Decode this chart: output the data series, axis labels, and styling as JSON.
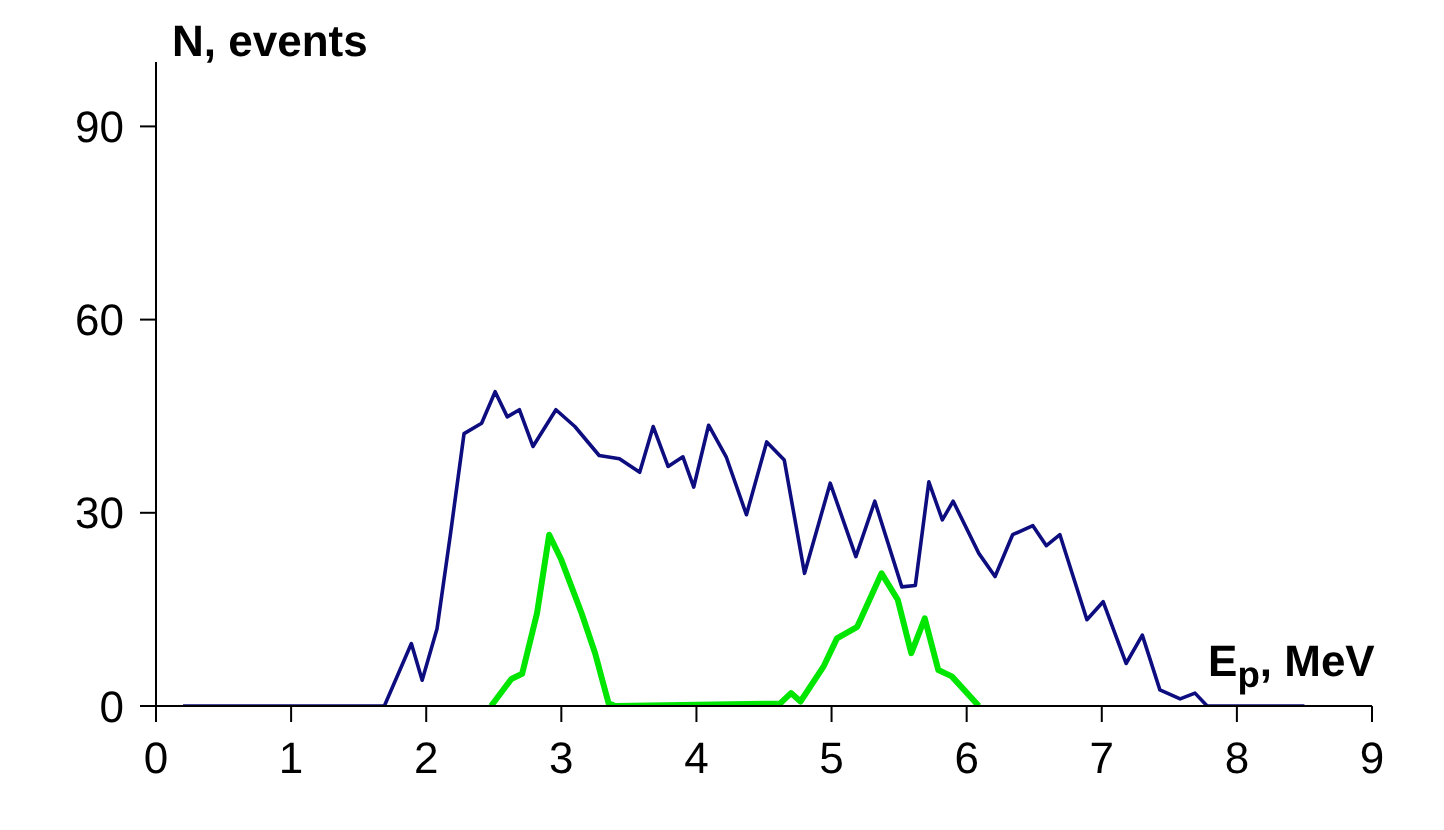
{
  "chart_data": {
    "type": "line",
    "xlabel": "E$_{p}$, MeV",
    "ylabel": "N, events",
    "xlim": [
      0,
      9
    ],
    "xticks": [
      0,
      1,
      2,
      3,
      4,
      5,
      6,
      7,
      8,
      9
    ],
    "ylim": [
      0,
      100
    ],
    "yticks": [
      0,
      30,
      60,
      90
    ],
    "grid": false,
    "legend": false,
    "series": [
      {
        "color": "#0d0d80",
        "x": [
          0.2,
          1.69,
          1.89,
          1.97,
          2.08,
          2.18,
          2.28,
          2.41,
          2.51,
          2.6,
          2.69,
          2.79,
          2.96,
          3.1,
          3.28,
          3.43,
          3.58,
          3.68,
          3.79,
          3.9,
          3.98,
          4.09,
          4.22,
          4.37,
          4.52,
          4.65,
          4.8,
          4.99,
          5.18,
          5.32,
          5.52,
          5.62,
          5.72,
          5.82,
          5.9,
          6.09,
          6.21,
          6.34,
          6.49,
          6.59,
          6.69,
          6.89,
          7.01,
          7.18,
          7.3,
          7.43,
          7.58,
          7.69,
          7.78,
          8.5
        ],
        "values": [
          0,
          0,
          9.7,
          4,
          12,
          26.8,
          42.3,
          43.9,
          48.8,
          44.9,
          46,
          40.3,
          46,
          43.4,
          38.9,
          38.4,
          36.3,
          43.4,
          37.2,
          38.7,
          34,
          43.6,
          38.7,
          29.7,
          41,
          38.2,
          20.6,
          34.6,
          23.2,
          31.8,
          18.5,
          18.7,
          34.8,
          28.9,
          31.8,
          23.7,
          20.1,
          26.6,
          28,
          24.9,
          26.6,
          13.4,
          16.2,
          6.6,
          11,
          2.5,
          1.1,
          2,
          0,
          0
        ]
      },
      {
        "color": "#00e600",
        "x": [
          2.48,
          2.63,
          2.71,
          2.82,
          2.91,
          3,
          3.15,
          3.25,
          3.35,
          3.4,
          4.62,
          4.7,
          4.77,
          4.94,
          5.04,
          5.19,
          5.37,
          5.49,
          5.59,
          5.69,
          5.79,
          5.89,
          6.09
        ],
        "values": [
          0,
          4.2,
          5,
          14.4,
          26.6,
          22.7,
          14.4,
          8.2,
          0.4,
          0,
          0.4,
          2,
          0.7,
          6.1,
          10.5,
          12.3,
          20.6,
          16.5,
          8.2,
          13.6,
          5.6,
          4.6,
          0
        ]
      }
    ]
  }
}
